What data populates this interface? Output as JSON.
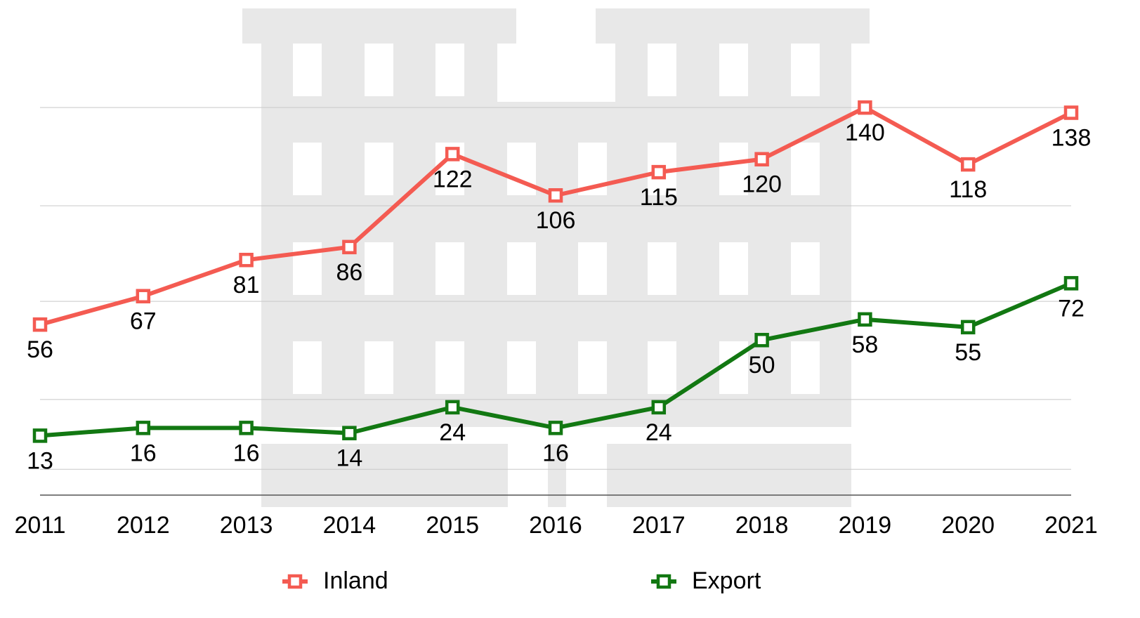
{
  "chart_data": {
    "type": "line",
    "categories": [
      "2011",
      "2012",
      "2013",
      "2014",
      "2015",
      "2016",
      "2017",
      "2018",
      "2019",
      "2020",
      "2021"
    ],
    "series": [
      {
        "name": "Inland",
        "color": "#f45b52",
        "values": [
          56,
          67,
          81,
          86,
          122,
          106,
          115,
          120,
          140,
          118,
          138
        ]
      },
      {
        "name": "Export",
        "color": "#127812",
        "values": [
          13,
          16,
          16,
          14,
          24,
          16,
          24,
          50,
          58,
          55,
          72
        ]
      }
    ],
    "ylim": [
      -10,
      180
    ],
    "yticks": [
      0,
      27,
      65,
      102,
      140
    ],
    "grid": true
  }
}
